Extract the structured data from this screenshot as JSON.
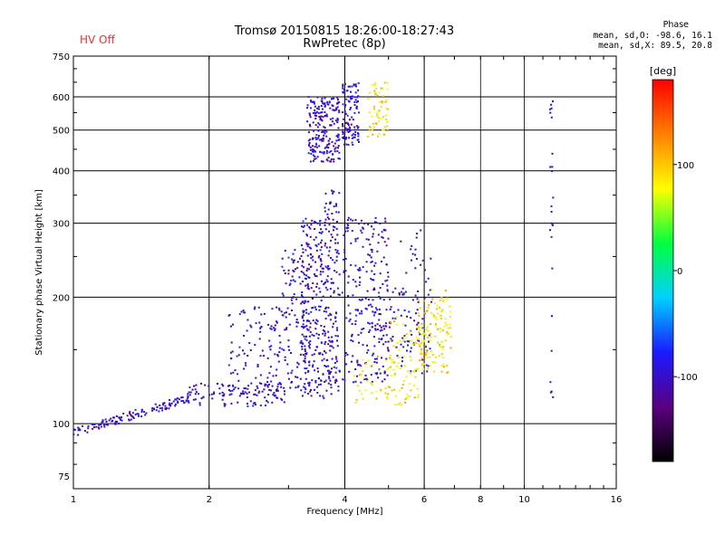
{
  "header": {
    "title_line1": "Tromsø 20150815 18:26:00-18:27:43",
    "title_line2": "RwPretec (8p)",
    "hv_status": "HV Off",
    "hv_color": "#ff2a2a"
  },
  "phase_stats": {
    "title": "Phase",
    "o_line": "mean, sd,O: -98.6, 16.1",
    "x_line": "mean, sd,X: 89.5, 20.8"
  },
  "chart_data": {
    "type": "scatter",
    "title": "Tromsø 20150815 18:26:00-18:27:43",
    "subtitle": "RwPretec (8p)",
    "xlabel": "Frequency [MHz]",
    "ylabel": "Stationary phase Virtual Height [km]",
    "x_scale": "log",
    "y_scale": "log",
    "xlim": [
      1,
      16
    ],
    "ylim": [
      70,
      750
    ],
    "x_ticks": [
      1,
      2,
      4,
      6,
      8,
      10,
      16
    ],
    "x_major_grid": [
      2,
      4,
      6
    ],
    "x_minor_grid": [
      8,
      10
    ],
    "y_ticks": [
      75,
      100,
      200,
      300,
      400,
      500,
      600,
      750
    ],
    "y_grid": [
      100,
      200,
      300,
      400,
      500,
      600
    ],
    "grid": true,
    "colorbar": {
      "label": "[deg]",
      "range": [
        -180,
        180
      ],
      "ticks": [
        -100,
        0,
        100
      ],
      "colors": [
        "#000000",
        "#5a0080",
        "#1a1aff",
        "#00d0ff",
        "#00ff40",
        "#ffff00",
        "#ff8000",
        "#ff0000"
      ]
    },
    "series": [
      {
        "mode": "O",
        "phase_deg": -98.6,
        "regions": [
          {
            "f": [
              1.0,
              1.8
            ],
            "h": [
              95,
              115
            ],
            "trend": "rising",
            "n": 130
          },
          {
            "f": [
              1.8,
              3.0
            ],
            "h": [
              110,
              125
            ],
            "trend": "flat",
            "n": 110
          },
          {
            "f": [
              2.2,
              2.9
            ],
            "h": [
              115,
              190
            ],
            "n": 110
          },
          {
            "f": [
              2.9,
              3.3
            ],
            "h": [
              120,
              260
            ],
            "n": 110
          },
          {
            "f": [
              3.2,
              3.9
            ],
            "h": [
              115,
              310
            ],
            "n": 380
          },
          {
            "f": [
              3.6,
              3.9
            ],
            "h": [
              310,
              360
            ],
            "n": 20
          },
          {
            "f": [
              3.95,
              5.0
            ],
            "h": [
              125,
              310
            ],
            "n": 230
          },
          {
            "f": [
              4.6,
              6.2
            ],
            "h": [
              130,
              210
            ],
            "n": 90
          },
          {
            "f": [
              5.3,
              6.3
            ],
            "h": [
              150,
              290
            ],
            "n": 40
          },
          {
            "f": [
              3.3,
              3.9
            ],
            "h": [
              420,
              600
            ],
            "n": 210
          },
          {
            "f": [
              3.95,
              4.3
            ],
            "h": [
              460,
              650
            ],
            "n": 110
          },
          {
            "f": [
              11.4,
              11.6
            ],
            "h": [
              110,
              590
            ],
            "n": 25
          }
        ]
      },
      {
        "mode": "X",
        "phase_deg": 89.5,
        "regions": [
          {
            "f": [
              4.5,
              5.0
            ],
            "h": [
              480,
              650
            ],
            "n": 60
          },
          {
            "f": [
              4.2,
              6.0
            ],
            "h": [
              110,
              145
            ],
            "n": 60
          },
          {
            "f": [
              5.0,
              6.0
            ],
            "h": [
              115,
              180
            ],
            "n": 60
          },
          {
            "f": [
              5.8,
              6.8
            ],
            "h": [
              130,
              200
            ],
            "n": 90
          },
          {
            "f": [
              6.2,
              6.9
            ],
            "h": [
              150,
              210
            ],
            "n": 30
          }
        ]
      }
    ]
  }
}
